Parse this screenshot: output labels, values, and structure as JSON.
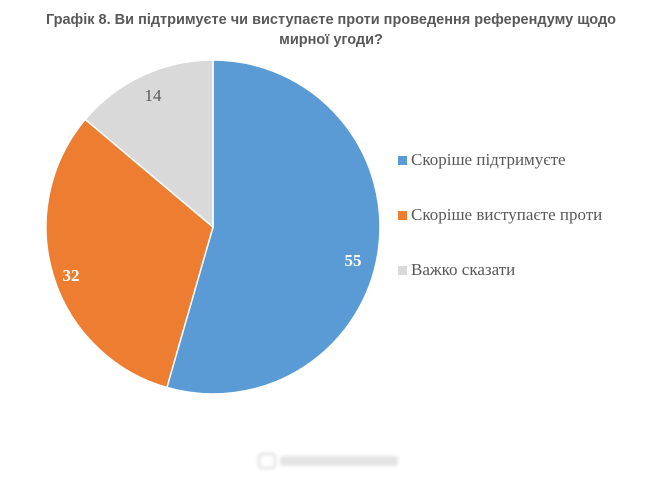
{
  "title": "Графік 8. Ви підтримуєте чи виступаєте проти проведення референдуму щодо мирної угоди?",
  "chart_data": {
    "type": "pie",
    "title": "Графік 8. Ви підтримуєте чи виступаєте проти проведення референдуму щодо мирної угоди?",
    "categories": [
      "Скоріше підтримуєте",
      "Скоріше виступаєте проти",
      "Важко сказати"
    ],
    "values": [
      55,
      32,
      14
    ],
    "colors": [
      "#5b9bd5",
      "#ed7d31",
      "#d9d9d9"
    ],
    "label_colors": [
      "#ffffff",
      "#ffffff",
      "#595959"
    ],
    "start_angle": "12 o'clock",
    "direction": "clockwise",
    "legend_position": "right"
  },
  "legend": [
    {
      "label": "Скоріше підтримуєте",
      "color": "#5b9bd5"
    },
    {
      "label": "Скоріше виступаєте проти",
      "color": "#ed7d31"
    },
    {
      "label": "Важко сказати",
      "color": "#d9d9d9"
    }
  ],
  "labels": {
    "s0": "55",
    "s1": "32",
    "s2": "14"
  }
}
